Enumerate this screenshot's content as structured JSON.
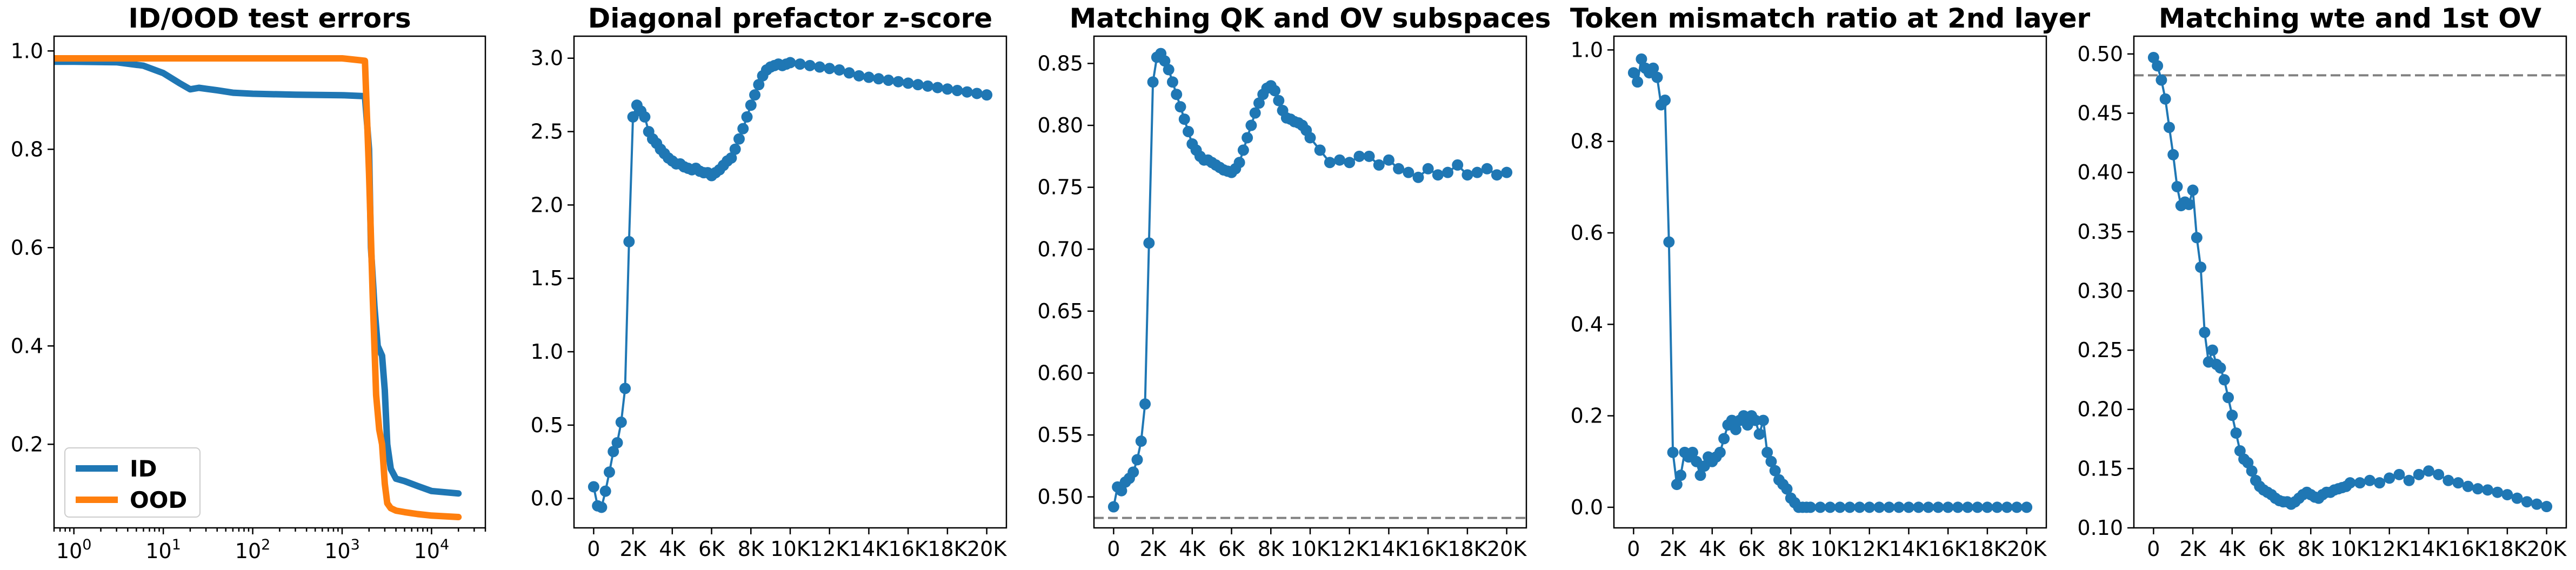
{
  "colors": {
    "blue": "#1f77b4",
    "orange": "#ff7f0e",
    "ref_line": "#808080"
  },
  "chart_data": [
    {
      "type": "line",
      "title": "ID/OOD test errors",
      "xlabel": "",
      "ylabel": "",
      "xscale": "log",
      "xlim": [
        0.6,
        40000
      ],
      "ylim": [
        0.03,
        1.03
      ],
      "x_tick_labels": [
        {
          "base": "10",
          "exp": "0",
          "value": 1
        },
        {
          "base": "10",
          "exp": "1",
          "value": 10
        },
        {
          "base": "10",
          "exp": "2",
          "value": 100
        },
        {
          "base": "10",
          "exp": "3",
          "value": 1000
        },
        {
          "base": "10",
          "exp": "4",
          "value": 10000
        }
      ],
      "y_ticks": [
        0.2,
        0.4,
        0.6,
        0.8,
        1.0
      ],
      "y_tick_labels": [
        "0.2",
        "0.4",
        "0.6",
        "0.8",
        "1.0"
      ],
      "legend": {
        "placement": "lower-left",
        "entries": [
          "ID",
          "OOD"
        ]
      },
      "series": [
        {
          "name": "ID",
          "color": "#1f77b4",
          "x": [
            0.6,
            1,
            3,
            6,
            10,
            15,
            20,
            25,
            40,
            60,
            100,
            300,
            1000,
            1800,
            2000,
            2100,
            2300,
            2500,
            2800,
            3000,
            3200,
            3500,
            4000,
            5000,
            7000,
            10000,
            20000
          ],
          "y": [
            0.978,
            0.978,
            0.977,
            0.97,
            0.955,
            0.935,
            0.922,
            0.925,
            0.92,
            0.915,
            0.913,
            0.911,
            0.91,
            0.908,
            0.8,
            0.6,
            0.48,
            0.4,
            0.38,
            0.31,
            0.2,
            0.15,
            0.13,
            0.125,
            0.115,
            0.105,
            0.1
          ]
        },
        {
          "name": "OOD",
          "color": "#ff7f0e",
          "x": [
            0.6,
            1,
            10,
            100,
            1000,
            1800,
            2000,
            2200,
            2400,
            2600,
            2800,
            3000,
            3200,
            3500,
            4000,
            5000,
            7000,
            10000,
            20000
          ],
          "y": [
            0.985,
            0.985,
            0.985,
            0.985,
            0.985,
            0.98,
            0.75,
            0.5,
            0.3,
            0.23,
            0.2,
            0.12,
            0.08,
            0.07,
            0.065,
            0.062,
            0.058,
            0.055,
            0.052
          ]
        }
      ]
    },
    {
      "type": "line",
      "title": "Diagonal prefactor z-score",
      "xlabel": "",
      "ylabel": "",
      "xlim": [
        -1000,
        21000
      ],
      "ylim": [
        -0.2,
        3.15
      ],
      "x_ticks": [
        0,
        2000,
        4000,
        6000,
        8000,
        10000,
        12000,
        14000,
        16000,
        18000,
        20000
      ],
      "x_tick_labels": [
        "0",
        "2K",
        "4K",
        "6K",
        "8K",
        "10K",
        "12K",
        "14K",
        "16K",
        "18K",
        "20K"
      ],
      "y_ticks": [
        0.0,
        0.5,
        1.0,
        1.5,
        2.0,
        2.5,
        3.0
      ],
      "y_tick_labels": [
        "0.0",
        "0.5",
        "1.0",
        "1.5",
        "2.0",
        "2.5",
        "3.0"
      ],
      "series": [
        {
          "color": "#1f77b4",
          "markers": true,
          "x": [
            0,
            200,
            400,
            600,
            800,
            1000,
            1200,
            1400,
            1600,
            1800,
            2000,
            2200,
            2400,
            2600,
            2800,
            3000,
            3200,
            3400,
            3600,
            3800,
            4000,
            4200,
            4400,
            4600,
            4800,
            5000,
            5200,
            5400,
            5600,
            5800,
            6000,
            6200,
            6400,
            6600,
            6800,
            7000,
            7200,
            7400,
            7600,
            7800,
            8000,
            8200,
            8400,
            8600,
            8800,
            9000,
            9200,
            9400,
            9600,
            9800,
            10000,
            10500,
            11000,
            11500,
            12000,
            12500,
            13000,
            13500,
            14000,
            14500,
            15000,
            15500,
            16000,
            16500,
            17000,
            17500,
            18000,
            18500,
            19000,
            19500,
            20000
          ],
          "y": [
            0.08,
            -0.05,
            -0.06,
            0.05,
            0.18,
            0.32,
            0.38,
            0.52,
            0.75,
            1.75,
            2.6,
            2.68,
            2.64,
            2.6,
            2.5,
            2.45,
            2.42,
            2.38,
            2.35,
            2.32,
            2.3,
            2.28,
            2.28,
            2.26,
            2.25,
            2.24,
            2.25,
            2.23,
            2.22,
            2.22,
            2.2,
            2.22,
            2.24,
            2.27,
            2.3,
            2.32,
            2.38,
            2.45,
            2.52,
            2.6,
            2.68,
            2.75,
            2.82,
            2.88,
            2.92,
            2.94,
            2.95,
            2.96,
            2.95,
            2.96,
            2.97,
            2.96,
            2.95,
            2.94,
            2.93,
            2.92,
            2.9,
            2.88,
            2.87,
            2.86,
            2.85,
            2.84,
            2.83,
            2.82,
            2.81,
            2.8,
            2.79,
            2.78,
            2.77,
            2.76,
            2.75
          ]
        }
      ]
    },
    {
      "type": "line",
      "title": "Matching QK and OV subspaces",
      "xlabel": "",
      "ylabel": "",
      "xlim": [
        -1000,
        21000
      ],
      "ylim": [
        0.475,
        0.872
      ],
      "x_ticks": [
        0,
        2000,
        4000,
        6000,
        8000,
        10000,
        12000,
        14000,
        16000,
        18000,
        20000
      ],
      "x_tick_labels": [
        "0",
        "2K",
        "4K",
        "6K",
        "8K",
        "10K",
        "12K",
        "14K",
        "16K",
        "18K",
        "20K"
      ],
      "y_ticks": [
        0.5,
        0.55,
        0.6,
        0.65,
        0.7,
        0.75,
        0.8,
        0.85
      ],
      "y_tick_labels": [
        "0.50",
        "0.55",
        "0.60",
        "0.65",
        "0.70",
        "0.75",
        "0.80",
        "0.85"
      ],
      "reference_line": {
        "y": 0.483,
        "style": "dashed"
      },
      "series": [
        {
          "color": "#1f77b4",
          "markers": true,
          "x": [
            0,
            200,
            400,
            600,
            800,
            1000,
            1200,
            1400,
            1600,
            1800,
            2000,
            2200,
            2400,
            2600,
            2800,
            3000,
            3200,
            3400,
            3600,
            3800,
            4000,
            4200,
            4400,
            4600,
            4800,
            5000,
            5200,
            5400,
            5600,
            5800,
            6000,
            6200,
            6400,
            6600,
            6800,
            7000,
            7200,
            7400,
            7600,
            7800,
            8000,
            8200,
            8400,
            8600,
            8800,
            9000,
            9200,
            9400,
            9600,
            9800,
            10000,
            10500,
            11000,
            11500,
            12000,
            12500,
            13000,
            13500,
            14000,
            14500,
            15000,
            15500,
            16000,
            16500,
            17000,
            17500,
            18000,
            18500,
            19000,
            19500,
            20000
          ],
          "y": [
            0.492,
            0.508,
            0.505,
            0.512,
            0.515,
            0.52,
            0.53,
            0.545,
            0.575,
            0.705,
            0.835,
            0.855,
            0.858,
            0.852,
            0.845,
            0.835,
            0.825,
            0.815,
            0.805,
            0.795,
            0.785,
            0.78,
            0.775,
            0.772,
            0.772,
            0.77,
            0.768,
            0.766,
            0.764,
            0.763,
            0.762,
            0.765,
            0.77,
            0.78,
            0.79,
            0.8,
            0.81,
            0.818,
            0.825,
            0.83,
            0.832,
            0.828,
            0.82,
            0.812,
            0.806,
            0.805,
            0.803,
            0.802,
            0.8,
            0.796,
            0.79,
            0.78,
            0.77,
            0.772,
            0.77,
            0.775,
            0.775,
            0.768,
            0.772,
            0.765,
            0.762,
            0.758,
            0.765,
            0.76,
            0.762,
            0.768,
            0.76,
            0.762,
            0.765,
            0.76,
            0.762
          ]
        }
      ]
    },
    {
      "type": "line",
      "title": "Token mismatch ratio at 2nd layer",
      "xlabel": "",
      "ylabel": "",
      "xlim": [
        -1000,
        21000
      ],
      "ylim": [
        -0.045,
        1.03
      ],
      "x_ticks": [
        0,
        2000,
        4000,
        6000,
        8000,
        10000,
        12000,
        14000,
        16000,
        18000,
        20000
      ],
      "x_tick_labels": [
        "0",
        "2K",
        "4K",
        "6K",
        "8K",
        "10K",
        "12K",
        "14K",
        "16K",
        "18K",
        "20K"
      ],
      "y_ticks": [
        0.0,
        0.2,
        0.4,
        0.6,
        0.8,
        1.0
      ],
      "y_tick_labels": [
        "0.0",
        "0.2",
        "0.4",
        "0.6",
        "0.8",
        "1.0"
      ],
      "series": [
        {
          "color": "#1f77b4",
          "markers": true,
          "x": [
            0,
            200,
            400,
            600,
            800,
            1000,
            1200,
            1400,
            1600,
            1800,
            2000,
            2200,
            2400,
            2600,
            2800,
            3000,
            3200,
            3400,
            3600,
            3800,
            4000,
            4200,
            4400,
            4600,
            4800,
            5000,
            5200,
            5400,
            5600,
            5800,
            6000,
            6200,
            6400,
            6600,
            6800,
            7000,
            7200,
            7400,
            7600,
            7800,
            8000,
            8200,
            8400,
            8600,
            8800,
            9000,
            9500,
            10000,
            10500,
            11000,
            11500,
            12000,
            12500,
            13000,
            13500,
            14000,
            14500,
            15000,
            15500,
            16000,
            16500,
            17000,
            17500,
            18000,
            18500,
            19000,
            19500,
            20000
          ],
          "y": [
            0.95,
            0.93,
            0.98,
            0.96,
            0.95,
            0.96,
            0.94,
            0.88,
            0.89,
            0.58,
            0.12,
            0.05,
            0.07,
            0.12,
            0.11,
            0.12,
            0.1,
            0.07,
            0.09,
            0.11,
            0.1,
            0.11,
            0.12,
            0.15,
            0.18,
            0.19,
            0.17,
            0.19,
            0.2,
            0.18,
            0.2,
            0.19,
            0.16,
            0.19,
            0.12,
            0.1,
            0.08,
            0.06,
            0.05,
            0.04,
            0.02,
            0.01,
            0.0,
            0.0,
            0.0,
            0.0,
            0.0,
            0.0,
            0.0,
            0.0,
            0.0,
            0.0,
            0.0,
            0.0,
            0.0,
            0.0,
            0.0,
            0.0,
            0.0,
            0.0,
            0.0,
            0.0,
            0.0,
            0.0,
            0.0,
            0.0,
            0.0,
            0.0
          ]
        }
      ]
    },
    {
      "type": "line",
      "title": "Matching wte and 1st OV",
      "xlabel": "",
      "ylabel": "",
      "xlim": [
        -1000,
        21000
      ],
      "ylim": [
        0.1,
        0.515
      ],
      "x_ticks": [
        0,
        2000,
        4000,
        6000,
        8000,
        10000,
        12000,
        14000,
        16000,
        18000,
        20000
      ],
      "x_tick_labels": [
        "0",
        "2K",
        "4K",
        "6K",
        "8K",
        "10K",
        "12K",
        "14K",
        "16K",
        "18K",
        "20K"
      ],
      "y_ticks": [
        0.1,
        0.15,
        0.2,
        0.25,
        0.3,
        0.35,
        0.4,
        0.45,
        0.5
      ],
      "y_tick_labels": [
        "0.10",
        "0.15",
        "0.20",
        "0.25",
        "0.30",
        "0.35",
        "0.40",
        "0.45",
        "0.50"
      ],
      "reference_line": {
        "y": 0.482,
        "style": "dashed"
      },
      "series": [
        {
          "color": "#1f77b4",
          "markers": true,
          "x": [
            0,
            200,
            400,
            600,
            800,
            1000,
            1200,
            1400,
            1600,
            1800,
            2000,
            2200,
            2400,
            2600,
            2800,
            3000,
            3200,
            3400,
            3600,
            3800,
            4000,
            4200,
            4400,
            4600,
            4800,
            5000,
            5200,
            5400,
            5600,
            5800,
            6000,
            6200,
            6400,
            6600,
            6800,
            7000,
            7200,
            7400,
            7600,
            7800,
            8000,
            8200,
            8400,
            8600,
            8800,
            9000,
            9200,
            9400,
            9600,
            9800,
            10000,
            10500,
            11000,
            11500,
            12000,
            12500,
            13000,
            13500,
            14000,
            14500,
            15000,
            15500,
            16000,
            16500,
            17000,
            17500,
            18000,
            18500,
            19000,
            19500,
            20000
          ],
          "y": [
            0.497,
            0.49,
            0.478,
            0.462,
            0.438,
            0.415,
            0.388,
            0.372,
            0.375,
            0.373,
            0.385,
            0.345,
            0.32,
            0.265,
            0.24,
            0.25,
            0.238,
            0.235,
            0.225,
            0.21,
            0.195,
            0.18,
            0.165,
            0.158,
            0.155,
            0.148,
            0.14,
            0.135,
            0.132,
            0.13,
            0.128,
            0.125,
            0.123,
            0.122,
            0.122,
            0.12,
            0.122,
            0.125,
            0.128,
            0.13,
            0.128,
            0.126,
            0.125,
            0.128,
            0.13,
            0.13,
            0.132,
            0.133,
            0.134,
            0.135,
            0.138,
            0.138,
            0.14,
            0.138,
            0.142,
            0.145,
            0.14,
            0.145,
            0.148,
            0.145,
            0.14,
            0.138,
            0.135,
            0.133,
            0.132,
            0.13,
            0.128,
            0.125,
            0.122,
            0.12,
            0.118
          ]
        }
      ]
    }
  ]
}
